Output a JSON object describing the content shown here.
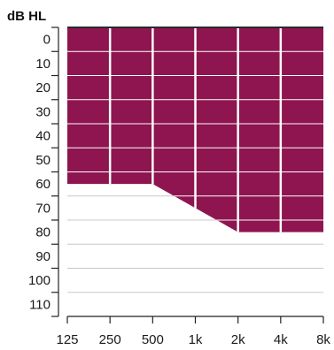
{
  "chart_data": {
    "type": "area",
    "title": "",
    "ylabel": "dB HL",
    "xlabel": "",
    "x_scale": "log2",
    "y_inverted": true,
    "x": [
      "125",
      "250",
      "500",
      "1k",
      "2k",
      "4k",
      "8k"
    ],
    "x_hz": [
      125,
      250,
      500,
      1000,
      2000,
      4000,
      8000
    ],
    "yticks": [
      0,
      10,
      20,
      30,
      40,
      50,
      60,
      70,
      80,
      90,
      100,
      110
    ],
    "ylim": [
      -5,
      115
    ],
    "grid": true,
    "series": [
      {
        "values": [
          60,
          60,
          60,
          70,
          80,
          80,
          80
        ]
      }
    ],
    "colors": {
      "fill": "#8e1550",
      "grid_on_fill": "#ffffff",
      "grid_on_white": "#c8c8c8",
      "axis": "#222222"
    }
  }
}
